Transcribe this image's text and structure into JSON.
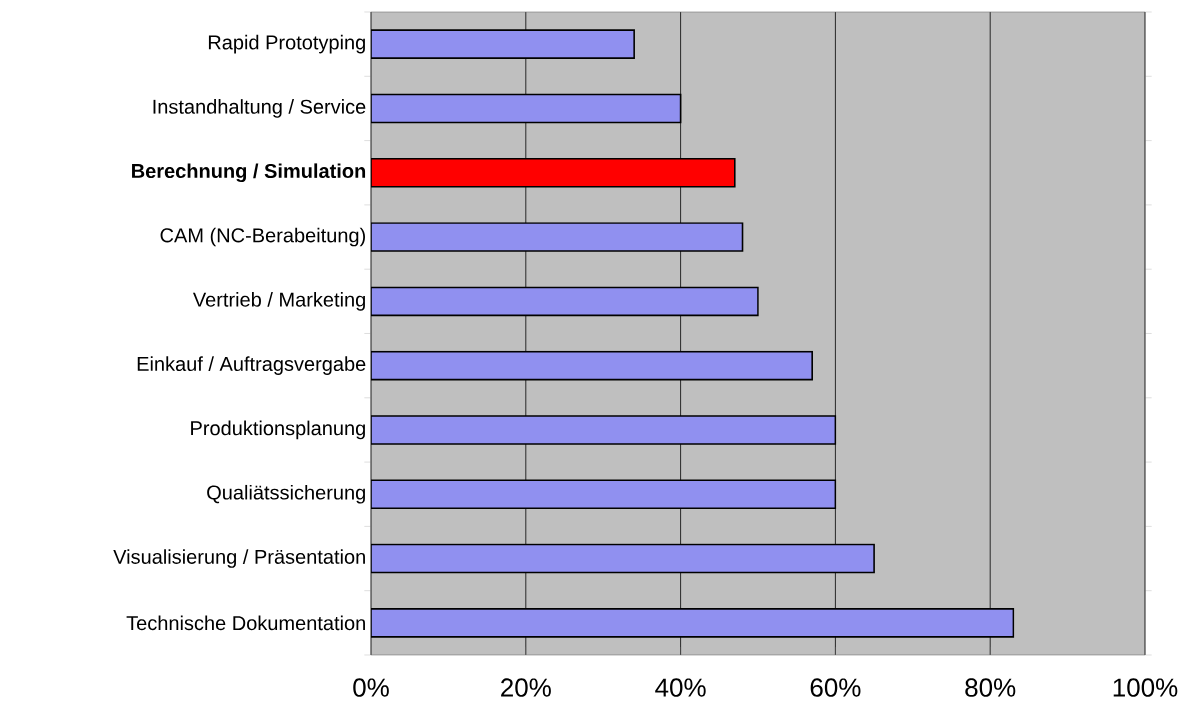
{
  "chart_data": {
    "type": "bar",
    "orientation": "horizontal",
    "categories": [
      "Rapid Prototyping",
      "Instandhaltung / Service",
      "**Berechnung / Simulation**",
      "CAM (NC-Berabeitung)",
      "Vertrieb / Marketing",
      "Einkauf / Auftragsvergabe",
      "Produktionsplanung",
      "Qualiätssicherung",
      "Visualisierung / Präsentation",
      "Technische Dokumentation"
    ],
    "values": [
      34,
      40,
      47,
      48,
      50,
      57,
      60,
      60,
      65,
      83
    ],
    "colors": [
      "#9090f0",
      "#9090f0",
      "#ff0000",
      "#9090f0",
      "#9090f0",
      "#9090f0",
      "#9090f0",
      "#9090f0",
      "#9090f0",
      "#9090f0"
    ],
    "xlim": [
      0,
      100
    ],
    "xticks": [
      {
        "value": 0,
        "label": "0%"
      },
      {
        "value": 20,
        "label": "20%"
      },
      {
        "value": 40,
        "label": "40%"
      },
      {
        "value": 60,
        "label": "60%"
      },
      {
        "value": 80,
        "label": "80%"
      },
      {
        "value": 100,
        "label": "100%"
      }
    ],
    "grid": "x"
  }
}
